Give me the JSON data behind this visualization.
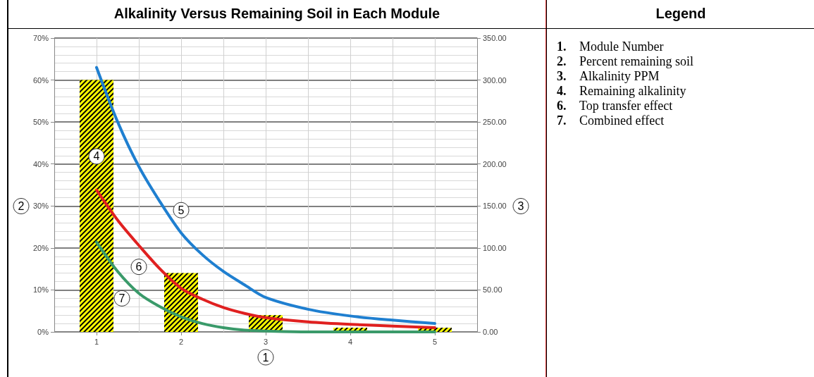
{
  "chart_data": {
    "type": "bar",
    "title": "Alkalinity Versus Remaining Soil in Each Module",
    "legend_title": "Legend",
    "xlabel": "1",
    "ylabel": "2",
    "y2label": "3",
    "xlim": [
      0.5,
      5.5
    ],
    "xticks": [
      1,
      2,
      3,
      4,
      5
    ],
    "ylim": [
      0,
      70
    ],
    "yticks": [
      {
        "value": 0,
        "label": "0%"
      },
      {
        "value": 10,
        "label": "10%"
      },
      {
        "value": 20,
        "label": "20%"
      },
      {
        "value": 30,
        "label": "30%"
      },
      {
        "value": 40,
        "label": "40%"
      },
      {
        "value": 50,
        "label": "50%"
      },
      {
        "value": 60,
        "label": "60%"
      },
      {
        "value": 70,
        "label": "70%"
      }
    ],
    "y2lim": [
      0,
      350
    ],
    "y2ticks": [
      {
        "value": 0,
        "label": "0.00"
      },
      {
        "value": 50,
        "label": "50.00"
      },
      {
        "value": 100,
        "label": "100.00"
      },
      {
        "value": 150,
        "label": "150.00"
      },
      {
        "value": 200,
        "label": "200.00"
      },
      {
        "value": 250,
        "label": "250.00"
      },
      {
        "value": 300,
        "label": "300.00"
      },
      {
        "value": 350,
        "label": "350.00"
      }
    ],
    "grid": true,
    "series": [
      {
        "color": "#ffff00",
        "x": [
          1,
          2,
          3,
          4,
          5
        ],
        "values": [
          60,
          14,
          4,
          1,
          1
        ]
      },
      {
        "type": "line",
        "axis": "y2",
        "color": "#1f7fd0",
        "x": [
          1,
          1.25,
          1.5,
          1.75,
          2,
          2.25,
          2.5,
          2.75,
          3,
          3.5,
          4,
          4.5,
          5
        ],
        "values": [
          315,
          250,
          197,
          155,
          118,
          92,
          72,
          56,
          41,
          27,
          19,
          14,
          10
        ]
      },
      {
        "type": "line",
        "axis": "y2",
        "color": "#e02020",
        "x": [
          1,
          1.25,
          1.5,
          1.75,
          2,
          2.25,
          2.5,
          2.75,
          3,
          3.5,
          4,
          4.5,
          5
        ],
        "values": [
          169,
          133,
          103,
          75,
          52,
          39,
          29,
          22,
          17,
          12,
          9,
          7,
          5
        ]
      },
      {
        "type": "line",
        "axis": "y2",
        "color": "#3a9a6a",
        "x": [
          1,
          1.25,
          1.5,
          1.75,
          2,
          2.25,
          2.5,
          2.75,
          3,
          3.5,
          4,
          5
        ],
        "values": [
          107,
          72,
          46,
          30,
          18,
          10,
          5,
          2,
          1,
          0,
          0,
          0
        ]
      }
    ],
    "annotations": [
      {
        "text": "4",
        "x": 1,
        "y": 41.8
      },
      {
        "text": "5",
        "x": 2,
        "y": 29
      },
      {
        "text": "6",
        "x": 1.5,
        "y": 15.5
      },
      {
        "text": "7",
        "x": 1.3,
        "y": 8
      },
      "1. Module Number",
      "2. Percent remaining soil",
      "3. Alkalinity PPM",
      "4. Remaining alkalinity",
      "6. Top transfer effect",
      "7. Combined effect"
    ]
  }
}
